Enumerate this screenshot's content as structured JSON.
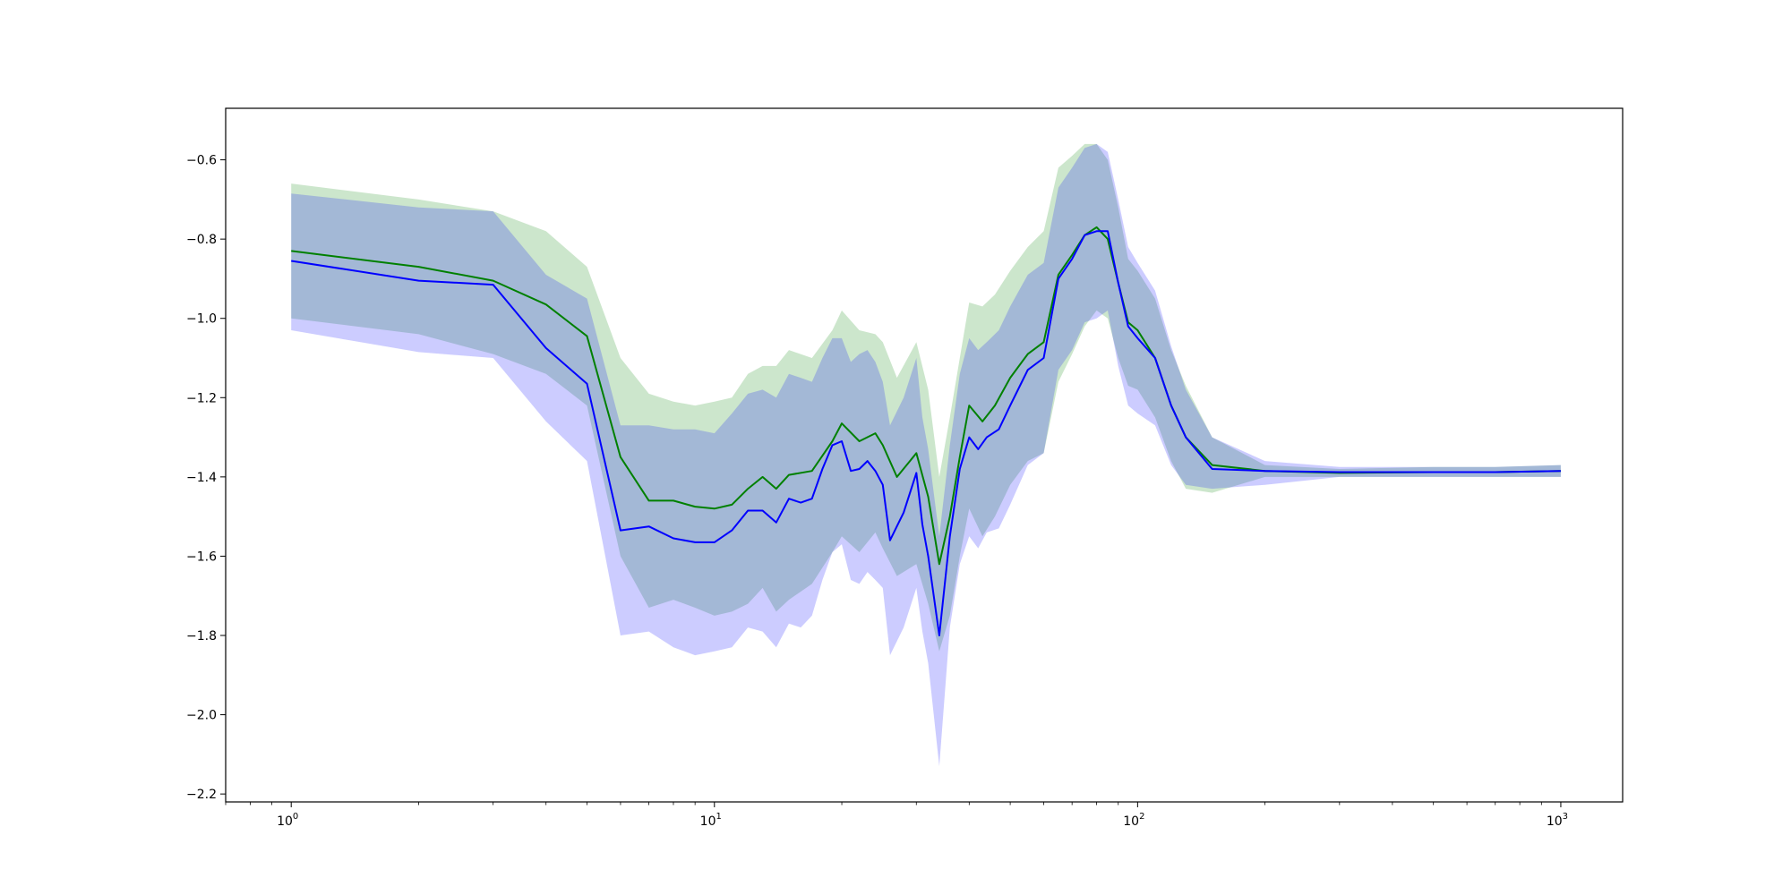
{
  "chart_data": {
    "type": "line",
    "title": "",
    "xlabel": "",
    "ylabel": "",
    "xscale": "log",
    "xlim": [
      0.7,
      1400
    ],
    "ylim": [
      -2.22,
      -0.47
    ],
    "grid": false,
    "legend": "none",
    "x_ticks": [
      {
        "value": 1,
        "base": "10",
        "exp": "0"
      },
      {
        "value": 10,
        "base": "10",
        "exp": "1"
      },
      {
        "value": 100,
        "base": "10",
        "exp": "2"
      },
      {
        "value": 1000,
        "base": "10",
        "exp": "3"
      }
    ],
    "y_ticks": [
      {
        "value": -0.6,
        "label": "−0.6"
      },
      {
        "value": -0.8,
        "label": "−0.8"
      },
      {
        "value": -1.0,
        "label": "−1.0"
      },
      {
        "value": -1.2,
        "label": "−1.2"
      },
      {
        "value": -1.4,
        "label": "−1.4"
      },
      {
        "value": -1.6,
        "label": "−1.6"
      },
      {
        "value": -1.8,
        "label": "−1.8"
      },
      {
        "value": -2.0,
        "label": "−2.0"
      },
      {
        "value": -2.2,
        "label": "−2.2"
      }
    ],
    "series": [
      {
        "color": "#008000",
        "band_color": "#008000",
        "band_opacity": 0.2,
        "x": [
          1,
          2,
          3,
          4,
          5,
          6,
          7,
          8,
          9,
          10,
          11,
          12,
          13,
          14,
          15,
          17,
          19,
          20,
          22,
          24,
          25,
          27,
          30,
          32,
          34,
          36,
          38,
          40,
          43,
          46,
          50,
          55,
          60,
          65,
          70,
          75,
          80,
          85,
          90,
          95,
          100,
          110,
          120,
          130,
          150,
          200,
          300,
          500,
          700,
          1000
        ],
        "y": [
          -0.83,
          -0.87,
          -0.905,
          -0.965,
          -1.045,
          -1.35,
          -1.46,
          -1.46,
          -1.475,
          -1.48,
          -1.47,
          -1.43,
          -1.4,
          -1.43,
          -1.395,
          -1.385,
          -1.31,
          -1.265,
          -1.31,
          -1.29,
          -1.32,
          -1.4,
          -1.34,
          -1.45,
          -1.62,
          -1.5,
          -1.35,
          -1.22,
          -1.26,
          -1.22,
          -1.15,
          -1.09,
          -1.06,
          -0.89,
          -0.84,
          -0.79,
          -0.77,
          -0.8,
          -0.91,
          -1.01,
          -1.03,
          -1.1,
          -1.22,
          -1.3,
          -1.37,
          -1.385,
          -1.39,
          -1.388,
          -1.388,
          -1.385
        ],
        "upper": [
          -0.66,
          -0.7,
          -0.73,
          -0.78,
          -0.87,
          -1.1,
          -1.19,
          -1.21,
          -1.22,
          -1.21,
          -1.2,
          -1.14,
          -1.12,
          -1.12,
          -1.08,
          -1.1,
          -1.03,
          -0.98,
          -1.03,
          -1.04,
          -1.06,
          -1.15,
          -1.06,
          -1.18,
          -1.4,
          -1.25,
          -1.1,
          -0.96,
          -0.97,
          -0.94,
          -0.88,
          -0.82,
          -0.78,
          -0.62,
          -0.59,
          -0.56,
          -0.56,
          -0.6,
          -0.72,
          -0.85,
          -0.88,
          -0.95,
          -1.08,
          -1.17,
          -1.3,
          -1.37,
          -1.38,
          -1.375,
          -1.375,
          -1.37
        ],
        "lower": [
          -1.0,
          -1.04,
          -1.09,
          -1.14,
          -1.22,
          -1.6,
          -1.73,
          -1.71,
          -1.73,
          -1.75,
          -1.74,
          -1.72,
          -1.68,
          -1.74,
          -1.71,
          -1.67,
          -1.59,
          -1.55,
          -1.59,
          -1.54,
          -1.58,
          -1.65,
          -1.62,
          -1.72,
          -1.84,
          -1.75,
          -1.6,
          -1.48,
          -1.55,
          -1.5,
          -1.42,
          -1.36,
          -1.34,
          -1.16,
          -1.09,
          -1.02,
          -0.98,
          -1.0,
          -1.1,
          -1.17,
          -1.18,
          -1.25,
          -1.36,
          -1.43,
          -1.44,
          -1.4,
          -1.4,
          -1.4,
          -1.4,
          -1.4
        ]
      },
      {
        "color": "#0000ff",
        "band_color": "#0000ff",
        "band_opacity": 0.2,
        "x": [
          1,
          2,
          3,
          4,
          5,
          6,
          7,
          8,
          9,
          10,
          11,
          12,
          13,
          14,
          15,
          16,
          17,
          18,
          19,
          20,
          21,
          22,
          23,
          24,
          25,
          26,
          28,
          30,
          31,
          32,
          34,
          36,
          38,
          40,
          42,
          44,
          47,
          50,
          55,
          60,
          65,
          70,
          75,
          80,
          85,
          90,
          95,
          100,
          110,
          120,
          130,
          150,
          200,
          300,
          500,
          700,
          1000
        ],
        "y": [
          -0.855,
          -0.905,
          -0.915,
          -1.075,
          -1.165,
          -1.535,
          -1.525,
          -1.555,
          -1.565,
          -1.565,
          -1.535,
          -1.485,
          -1.485,
          -1.515,
          -1.455,
          -1.465,
          -1.455,
          -1.38,
          -1.32,
          -1.31,
          -1.385,
          -1.38,
          -1.36,
          -1.385,
          -1.42,
          -1.56,
          -1.49,
          -1.39,
          -1.52,
          -1.6,
          -1.8,
          -1.55,
          -1.38,
          -1.3,
          -1.33,
          -1.3,
          -1.28,
          -1.22,
          -1.13,
          -1.1,
          -0.9,
          -0.85,
          -0.79,
          -0.78,
          -0.78,
          -0.91,
          -1.02,
          -1.05,
          -1.1,
          -1.22,
          -1.3,
          -1.38,
          -1.385,
          -1.388,
          -1.388,
          -1.388,
          -1.385
        ],
        "upper": [
          -0.685,
          -0.72,
          -0.73,
          -0.89,
          -0.95,
          -1.27,
          -1.27,
          -1.28,
          -1.28,
          -1.29,
          -1.24,
          -1.19,
          -1.18,
          -1.2,
          -1.14,
          -1.15,
          -1.16,
          -1.1,
          -1.05,
          -1.05,
          -1.11,
          -1.09,
          -1.08,
          -1.11,
          -1.16,
          -1.27,
          -1.2,
          -1.1,
          -1.25,
          -1.33,
          -1.55,
          -1.32,
          -1.14,
          -1.05,
          -1.08,
          -1.06,
          -1.03,
          -0.97,
          -0.89,
          -0.86,
          -0.67,
          -0.62,
          -0.57,
          -0.56,
          -0.58,
          -0.7,
          -0.82,
          -0.86,
          -0.93,
          -1.07,
          -1.18,
          -1.3,
          -1.36,
          -1.375,
          -1.375,
          -1.375,
          -1.37
        ],
        "lower": [
          -1.03,
          -1.085,
          -1.1,
          -1.26,
          -1.36,
          -1.8,
          -1.79,
          -1.83,
          -1.85,
          -1.84,
          -1.83,
          -1.78,
          -1.79,
          -1.83,
          -1.77,
          -1.78,
          -1.75,
          -1.66,
          -1.59,
          -1.57,
          -1.66,
          -1.67,
          -1.64,
          -1.66,
          -1.68,
          -1.85,
          -1.78,
          -1.68,
          -1.79,
          -1.87,
          -2.13,
          -1.78,
          -1.62,
          -1.55,
          -1.58,
          -1.54,
          -1.53,
          -1.47,
          -1.37,
          -1.34,
          -1.13,
          -1.08,
          -1.01,
          -1.0,
          -0.98,
          -1.12,
          -1.22,
          -1.24,
          -1.27,
          -1.37,
          -1.42,
          -1.43,
          -1.42,
          -1.4,
          -1.4,
          -1.4,
          -1.4
        ]
      }
    ]
  }
}
